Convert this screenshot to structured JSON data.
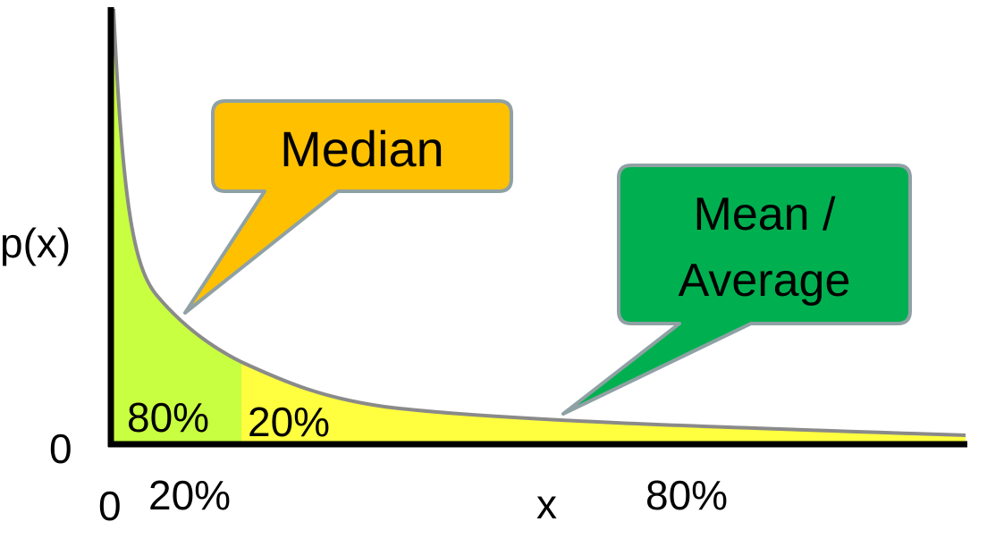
{
  "diagram": {
    "y_axis_label": "p(x)",
    "y_origin_label": "0",
    "x_origin_label": "0",
    "x_axis_label": "x",
    "x_left_percent_label": "20%",
    "x_right_percent_label": "80%",
    "area_left_label": "80%",
    "area_right_label": "20%",
    "median_callout": "Median",
    "mean_callout_line1": "Mean /",
    "mean_callout_line2": "Average"
  },
  "colors": {
    "left_area": "#c8ff40",
    "right_area": "#ffff40",
    "curve": "#8a8a8a",
    "axis": "#000000",
    "median_box": "#ffc000",
    "mean_box": "#00b050",
    "callout_border": "#8fa1a4"
  }
}
